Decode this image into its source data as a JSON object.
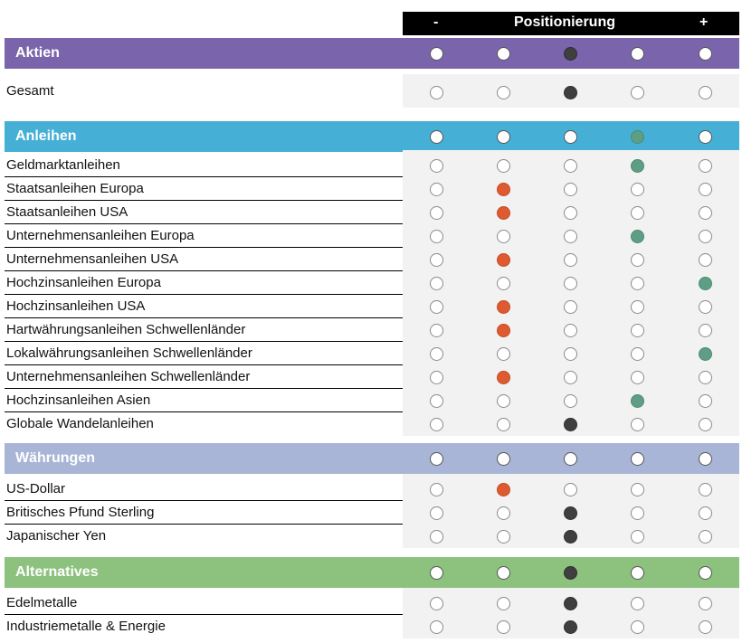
{
  "header": {
    "minus": "-",
    "title": "Positionierung",
    "plus": "+"
  },
  "colors": {
    "empty": "#ffffff",
    "dark": "#3f3f3f",
    "red": "#df5a30",
    "green": "#5d9e85"
  },
  "sections": [
    {
      "name": "Aktien",
      "color": "#7a65ad",
      "band_position": "dark",
      "band_index": 2,
      "rows": [
        {
          "label": "Gesamt",
          "position": "dark",
          "index": 2
        }
      ]
    },
    {
      "name": "Anleihen",
      "color": "#46afd6",
      "band_position": "green",
      "band_index": 3,
      "rows": [
        {
          "label": "Geldmarktanleihen",
          "position": "green",
          "index": 3
        },
        {
          "label": "Staatsanleihen Europa",
          "position": "red",
          "index": 1
        },
        {
          "label": "Staatsanleihen USA",
          "position": "red",
          "index": 1
        },
        {
          "label": "Unternehmensanleihen Europa",
          "position": "green",
          "index": 3
        },
        {
          "label": "Unternehmensanleihen USA",
          "position": "red",
          "index": 1
        },
        {
          "label": "Hochzinsanleihen Europa",
          "position": "green",
          "index": 4
        },
        {
          "label": "Hochzinsanleihen USA",
          "position": "red",
          "index": 1
        },
        {
          "label": "Hartwährungsanleihen Schwellenländer",
          "position": "red",
          "index": 1
        },
        {
          "label": "Lokalwährungsanleihen Schwellenländer",
          "position": "green",
          "index": 4
        },
        {
          "label": "Unternehmensanleihen Schwellenländer",
          "position": "red",
          "index": 1
        },
        {
          "label": "Hochzinsanleihen Asien",
          "position": "green",
          "index": 3
        },
        {
          "label": "Globale Wandelanleihen",
          "position": "dark",
          "index": 2
        }
      ]
    },
    {
      "name": "Währungen",
      "color": "#a9b5d6",
      "band_position": "none",
      "band_index": -1,
      "rows": [
        {
          "label": "US-Dollar",
          "position": "red",
          "index": 1
        },
        {
          "label": "Britisches Pfund Sterling",
          "position": "dark",
          "index": 2
        },
        {
          "label": "Japanischer Yen",
          "position": "dark",
          "index": 2
        }
      ]
    },
    {
      "name": "Alternatives",
      "color": "#8cc27d",
      "band_position": "dark",
      "band_index": 2,
      "rows": [
        {
          "label": "Edelmetalle",
          "position": "dark",
          "index": 2
        },
        {
          "label": "Industriemetalle & Energie",
          "position": "dark",
          "index": 2
        }
      ]
    }
  ]
}
